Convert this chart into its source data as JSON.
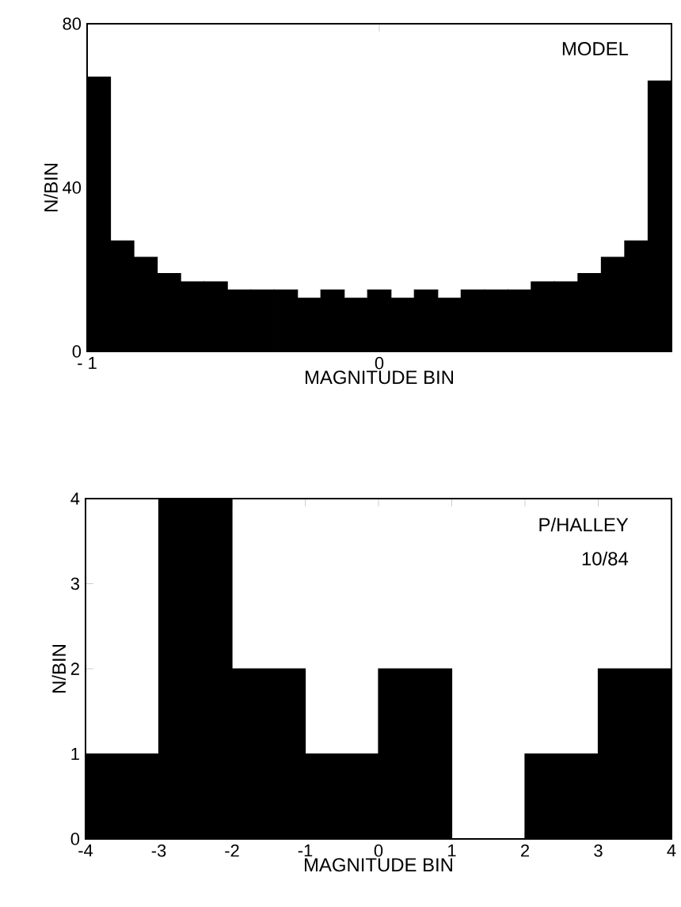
{
  "chart_data": [
    {
      "type": "histogram",
      "color": "#000000",
      "xlabel": "MAGNITUDE BIN",
      "ylabel": "N/BIN",
      "annotations": [
        "MODEL"
      ],
      "bins": [
        -1,
        -0.92,
        -0.84,
        -0.76,
        -0.68,
        -0.6,
        -0.52,
        -0.44,
        -0.36,
        -0.28,
        -0.2,
        -0.12,
        -0.04,
        0.04,
        0.12,
        0.2,
        0.28,
        0.36,
        0.44,
        0.52,
        0.6,
        0.68,
        0.76,
        0.84,
        0.92,
        1
      ],
      "values": [
        67,
        27,
        23,
        19,
        17,
        17,
        15,
        15,
        15,
        13,
        15,
        13,
        15,
        13,
        15,
        13,
        15,
        15,
        15,
        17,
        17,
        19,
        23,
        27,
        66
      ],
      "xlim": [
        -1,
        1
      ],
      "ylim": [
        0,
        80
      ],
      "xticks": [
        {
          "value": -1,
          "label": "- 1"
        },
        0
      ],
      "yticks": [
        0,
        40,
        80
      ]
    },
    {
      "type": "histogram",
      "color": "#000000",
      "xlabel": "MAGNITUDE BIN",
      "ylabel": "N/BIN",
      "annotations": [
        "P/HALLEY",
        "10/84"
      ],
      "bins": [
        -4,
        -3,
        -2,
        -1,
        0,
        1,
        2,
        3,
        4
      ],
      "values": [
        1,
        4,
        2,
        1,
        2,
        0,
        1,
        2
      ],
      "xlim": [
        -4,
        4
      ],
      "ylim": [
        0,
        4
      ],
      "xticks": [
        -4,
        -3,
        -2,
        -1,
        0,
        1,
        2,
        3,
        4
      ],
      "yticks": [
        0,
        1,
        2,
        3,
        4
      ]
    }
  ]
}
